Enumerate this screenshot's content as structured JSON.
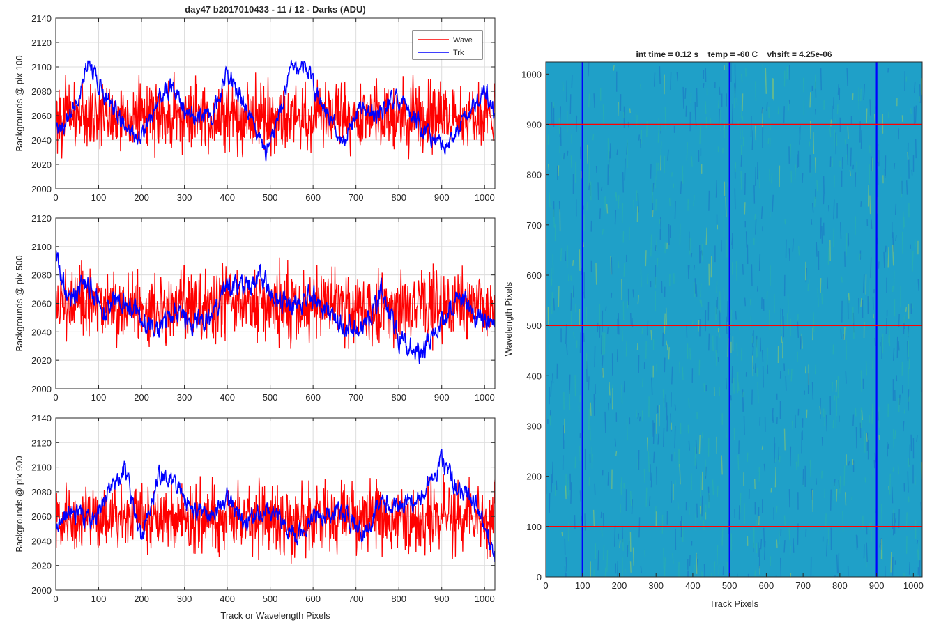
{
  "figure": {
    "title": "day47 b2017010433 - 11 / 12 - Darks (ADU)",
    "xlabel": "Track or Wavelength Pixels"
  },
  "legend": {
    "items": [
      {
        "label": "Wave",
        "color": "#ff0000"
      },
      {
        "label": "Trk",
        "color": "#0000ff"
      }
    ],
    "placement": "top-right"
  },
  "chart_data": [
    {
      "type": "line",
      "ylabel": "Backgrounds @ pix 100",
      "xlim": [
        0,
        1024
      ],
      "ylim": [
        2000,
        2140
      ],
      "xticks": [
        0,
        100,
        200,
        300,
        400,
        500,
        600,
        700,
        800,
        900,
        1000
      ],
      "yticks": [
        2000,
        2020,
        2040,
        2060,
        2080,
        2100,
        2120,
        2140
      ],
      "grid": true,
      "series": [
        {
          "name": "Wave",
          "color": "#ff0000",
          "mean": 2060,
          "noise": 22,
          "min": 2018,
          "max": 2120
        },
        {
          "name": "Trk",
          "color": "#0000ff",
          "x": [
            0,
            40,
            75,
            120,
            160,
            200,
            240,
            270,
            300,
            330,
            360,
            400,
            440,
            470,
            490,
            520,
            550,
            590,
            630,
            670,
            710,
            750,
            790,
            830,
            870,
            910,
            960,
            1000,
            1024
          ],
          "y": [
            2045,
            2065,
            2100,
            2075,
            2050,
            2040,
            2075,
            2085,
            2062,
            2060,
            2055,
            2095,
            2070,
            2045,
            2030,
            2060,
            2100,
            2095,
            2060,
            2040,
            2065,
            2060,
            2075,
            2060,
            2045,
            2035,
            2060,
            2085,
            2060
          ]
        }
      ]
    },
    {
      "type": "line",
      "ylabel": "Backgrounds @ pix 500",
      "xlim": [
        0,
        1024
      ],
      "ylim": [
        2000,
        2120
      ],
      "xticks": [
        0,
        100,
        200,
        300,
        400,
        500,
        600,
        700,
        800,
        900,
        1000
      ],
      "yticks": [
        2000,
        2020,
        2040,
        2060,
        2080,
        2100,
        2120
      ],
      "grid": true,
      "series": [
        {
          "name": "Wave",
          "color": "#ff0000",
          "mean": 2058,
          "noise": 20,
          "min": 2018,
          "max": 2110
        },
        {
          "name": "Trk",
          "color": "#0000ff",
          "x": [
            0,
            30,
            70,
            110,
            150,
            200,
            240,
            280,
            320,
            360,
            400,
            440,
            480,
            520,
            560,
            600,
            640,
            680,
            720,
            760,
            800,
            850,
            900,
            940,
            980,
            1024
          ],
          "y": [
            2095,
            2060,
            2075,
            2055,
            2065,
            2050,
            2040,
            2055,
            2045,
            2050,
            2075,
            2070,
            2080,
            2060,
            2060,
            2065,
            2050,
            2045,
            2040,
            2070,
            2035,
            2025,
            2045,
            2065,
            2050,
            2045
          ]
        }
      ]
    },
    {
      "type": "line",
      "ylabel": "Backgrounds @ pix 900",
      "xlim": [
        0,
        1024
      ],
      "ylim": [
        2000,
        2140
      ],
      "xticks": [
        0,
        100,
        200,
        300,
        400,
        500,
        600,
        700,
        800,
        900,
        1000
      ],
      "yticks": [
        2000,
        2020,
        2040,
        2060,
        2080,
        2100,
        2120,
        2140
      ],
      "grid": true,
      "series": [
        {
          "name": "Wave",
          "color": "#ff0000",
          "mean": 2058,
          "noise": 22,
          "min": 2018,
          "max": 2128
        },
        {
          "name": "Trk",
          "color": "#0000ff",
          "x": [
            0,
            30,
            80,
            120,
            160,
            200,
            240,
            280,
            320,
            360,
            400,
            440,
            480,
            520,
            560,
            600,
            640,
            680,
            720,
            760,
            800,
            850,
            900,
            940,
            980,
            1024
          ],
          "y": [
            2050,
            2065,
            2055,
            2075,
            2100,
            2040,
            2095,
            2085,
            2065,
            2060,
            2075,
            2055,
            2065,
            2060,
            2045,
            2060,
            2065,
            2060,
            2045,
            2075,
            2065,
            2075,
            2105,
            2080,
            2070,
            2025
          ]
        }
      ]
    },
    {
      "type": "heatmap",
      "title": "int time = 0.12 s    temp = -60 C    vhsift = 4.25e-06",
      "xlabel": "Track Pixels",
      "ylabel": "Wavelength Pixels",
      "xlim": [
        0,
        1024
      ],
      "ylim": [
        0,
        1024
      ],
      "xticks": [
        0,
        100,
        200,
        300,
        400,
        500,
        600,
        700,
        800,
        900,
        1000
      ],
      "yticks": [
        0,
        100,
        200,
        300,
        400,
        500,
        600,
        700,
        800,
        900,
        1000
      ],
      "colormap": [
        "#1a6fc4",
        "#1fa0c8",
        "#2bb3a8",
        "#8fc86a"
      ],
      "vertical_lines": {
        "x": [
          100,
          500,
          900
        ],
        "color": "#0000ff"
      },
      "horizontal_lines": {
        "y": [
          100,
          500,
          900
        ],
        "color": "#ff0000"
      }
    }
  ]
}
